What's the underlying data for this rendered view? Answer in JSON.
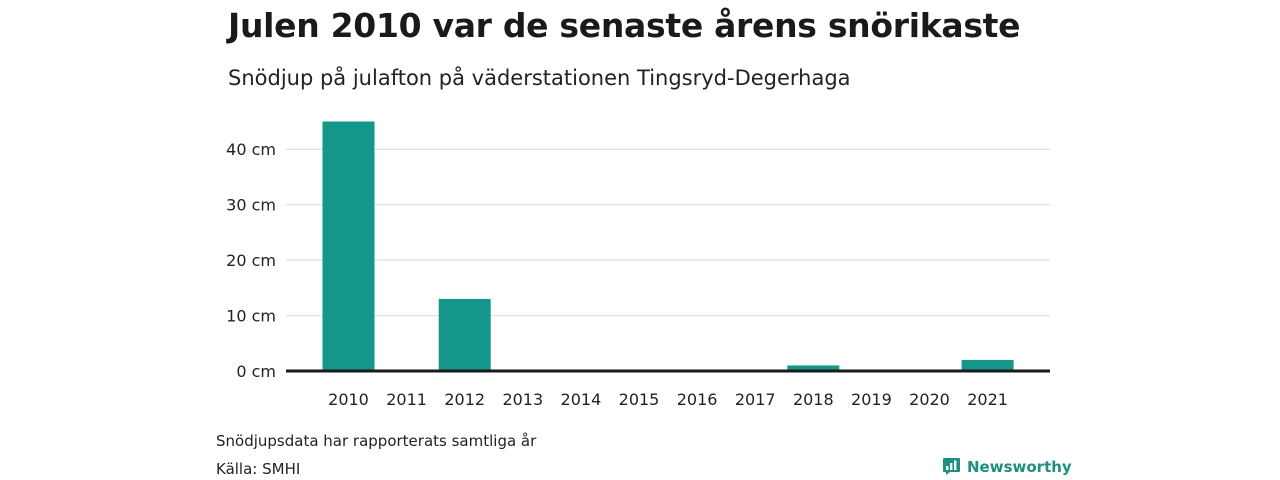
{
  "header": {
    "title": "Julen 2010 var de senaste årens snörikaste",
    "subtitle": "Snödjup på julafton på väderstationen Tingsryd-Degerhaga"
  },
  "footer": {
    "note": "Snödjupsdata har rapporterats samtliga år",
    "source": "Källa: SMHI",
    "brand": "Newsworthy",
    "brand_icon": "bar-chart-logo-icon"
  },
  "colors": {
    "bar": "#14968a",
    "axis": "#1a1a1a",
    "grid": "#dddddd",
    "brand": "#1e8f80"
  },
  "chart_data": {
    "type": "bar",
    "categories": [
      "2010",
      "2011",
      "2012",
      "2013",
      "2014",
      "2015",
      "2016",
      "2017",
      "2018",
      "2019",
      "2020",
      "2021"
    ],
    "values": [
      45,
      0,
      13,
      0,
      0,
      0,
      0,
      0,
      1,
      0,
      0,
      2
    ],
    "ylabel": "",
    "xlabel": "",
    "ylim": [
      0,
      45
    ],
    "yticks": [
      0,
      10,
      20,
      30,
      40
    ],
    "yunit": " cm",
    "grid": true,
    "legend": "none"
  }
}
